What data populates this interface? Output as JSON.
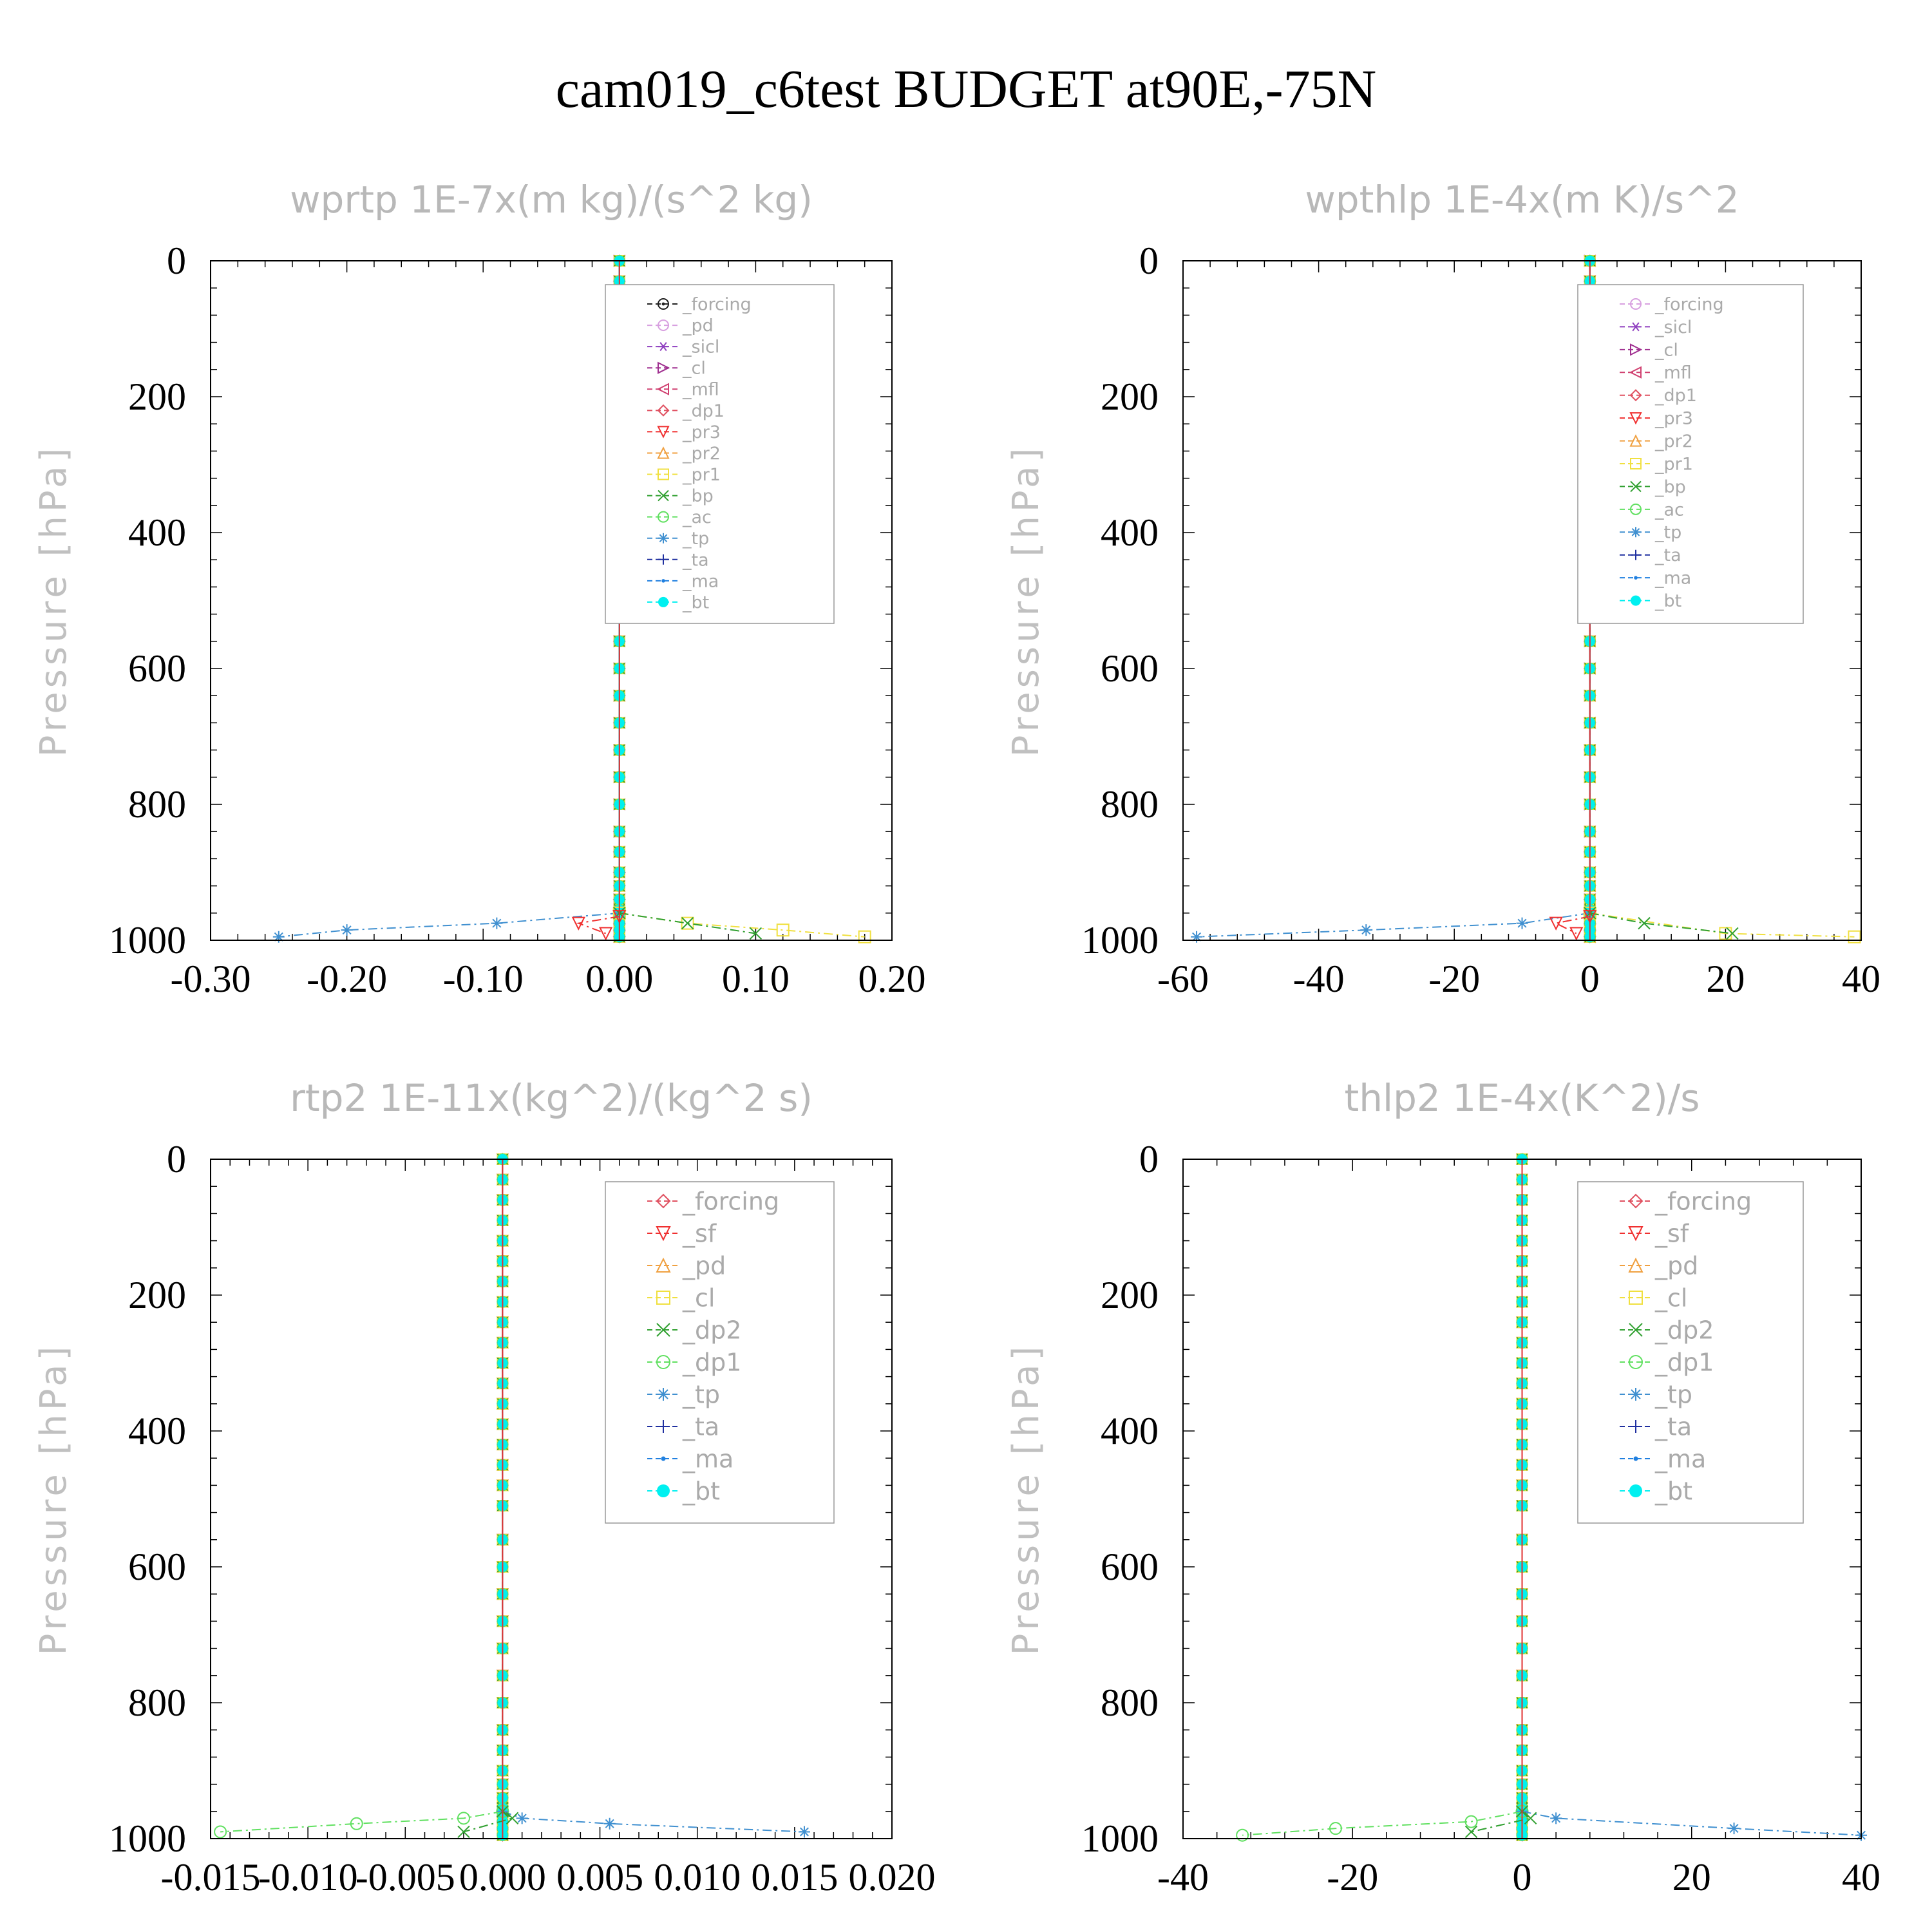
{
  "page": {
    "title": "cam019_c6test  BUDGET at90E,-75N"
  },
  "chart_data": [
    {
      "type": "line",
      "title": "wprtp   1E-7x(m kg)/(s^2 kg)",
      "xlabel": "",
      "ylabel": "Pressure [hPa]",
      "xlim": [
        -0.3,
        0.2
      ],
      "ylim": [
        1000,
        0
      ],
      "xticks": [
        "-0.30",
        "-0.20",
        "-0.10",
        "0.00",
        "0.10",
        "0.20"
      ],
      "yticks": [
        "0",
        "200",
        "400",
        "600",
        "800",
        "1000"
      ],
      "legend_position": "top-right",
      "grid": false,
      "series": [
        {
          "name": "_forcing",
          "color": "#222222",
          "marker": "circle-dot"
        },
        {
          "name": "_pd",
          "color": "#d8a0e0",
          "marker": "circle"
        },
        {
          "name": "_sicl",
          "color": "#9040c0",
          "marker": "star"
        },
        {
          "name": "_cl",
          "color": "#a03090",
          "marker": "triangle-right"
        },
        {
          "name": "_mfl",
          "color": "#d04070",
          "marker": "triangle-left"
        },
        {
          "name": "_dp1",
          "color": "#e05060",
          "marker": "diamond"
        },
        {
          "name": "_pr3",
          "color": "#f03030",
          "marker": "triangle-down"
        },
        {
          "name": "_pr2",
          "color": "#f0a040",
          "marker": "triangle-up"
        },
        {
          "name": "_pr1",
          "color": "#f0e040",
          "marker": "square"
        },
        {
          "name": "_bp",
          "color": "#30a030",
          "marker": "x"
        },
        {
          "name": "_ac",
          "color": "#60e060",
          "marker": "circle"
        },
        {
          "name": "_tp",
          "color": "#4090d0",
          "marker": "asterisk"
        },
        {
          "name": "_ta",
          "color": "#2030a0",
          "marker": "plus"
        },
        {
          "name": "_ma",
          "color": "#2080e0",
          "marker": "dot"
        },
        {
          "name": "_bt",
          "color": "#00f0f0",
          "marker": "filled-circle"
        }
      ],
      "near_surface_excursions": [
        {
          "series": "_tp",
          "points": [
            [
              0,
              960
            ],
            [
              -0.09,
              975
            ],
            [
              -0.2,
              985
            ],
            [
              -0.25,
              995
            ]
          ]
        },
        {
          "series": "_pr1",
          "points": [
            [
              0,
              960
            ],
            [
              0.05,
              975
            ],
            [
              0.12,
              985
            ],
            [
              0.18,
              995
            ]
          ]
        },
        {
          "series": "_bp",
          "points": [
            [
              0,
              960
            ],
            [
              0.05,
              975
            ],
            [
              0.1,
              990
            ]
          ]
        },
        {
          "series": "_pr3",
          "points": [
            [
              0,
              965
            ],
            [
              -0.03,
              975
            ],
            [
              -0.01,
              990
            ]
          ]
        }
      ]
    },
    {
      "type": "line",
      "title": "wpthlp   1E-4x(m K)/s^2",
      "xlabel": "",
      "ylabel": "Pressure [hPa]",
      "xlim": [
        -60,
        40
      ],
      "ylim": [
        1000,
        0
      ],
      "xticks": [
        "-60",
        "-40",
        "-20",
        "0",
        "20",
        "40"
      ],
      "yticks": [
        "0",
        "200",
        "400",
        "600",
        "800",
        "1000"
      ],
      "legend_position": "top-right",
      "grid": false,
      "series": [
        {
          "name": "_forcing",
          "color": "#d8a0e0",
          "marker": "circle"
        },
        {
          "name": "_sicl",
          "color": "#9040c0",
          "marker": "star"
        },
        {
          "name": "_cl",
          "color": "#a03090",
          "marker": "triangle-right"
        },
        {
          "name": "_mfl",
          "color": "#d04070",
          "marker": "triangle-left"
        },
        {
          "name": "_dp1",
          "color": "#e05060",
          "marker": "diamond"
        },
        {
          "name": "_pr3",
          "color": "#f03030",
          "marker": "triangle-down"
        },
        {
          "name": "_pr2",
          "color": "#f0a040",
          "marker": "triangle-up"
        },
        {
          "name": "_pr1",
          "color": "#f0e040",
          "marker": "square"
        },
        {
          "name": "_bp",
          "color": "#30a030",
          "marker": "x"
        },
        {
          "name": "_ac",
          "color": "#60e060",
          "marker": "circle"
        },
        {
          "name": "_tp",
          "color": "#4090d0",
          "marker": "asterisk"
        },
        {
          "name": "_ta",
          "color": "#2030a0",
          "marker": "plus"
        },
        {
          "name": "_ma",
          "color": "#2080e0",
          "marker": "dot"
        },
        {
          "name": "_bt",
          "color": "#00f0f0",
          "marker": "filled-circle"
        }
      ],
      "near_surface_excursions": [
        {
          "series": "_tp",
          "points": [
            [
              0,
              960
            ],
            [
              -10,
              975
            ],
            [
              -33,
              985
            ],
            [
              -58,
              995
            ]
          ]
        },
        {
          "series": "_pr1",
          "points": [
            [
              0,
              960
            ],
            [
              20,
              990
            ],
            [
              39,
              995
            ]
          ]
        },
        {
          "series": "_bp",
          "points": [
            [
              0,
              960
            ],
            [
              8,
              975
            ],
            [
              21,
              990
            ]
          ]
        },
        {
          "series": "_pr3",
          "points": [
            [
              0,
              965
            ],
            [
              -5,
              975
            ],
            [
              -2,
              990
            ]
          ]
        }
      ]
    },
    {
      "type": "line",
      "title": "rtp2   1E-11x(kg^2)/(kg^2 s)",
      "xlabel": "",
      "ylabel": "Pressure [hPa]",
      "xlim": [
        -0.015,
        0.02
      ],
      "ylim": [
        1000,
        0
      ],
      "xticks": [
        "-0.015",
        "-0.010",
        "-0.005",
        "0.000",
        "0.005",
        "0.010",
        "0.015",
        "0.020"
      ],
      "yticks": [
        "0",
        "200",
        "400",
        "600",
        "800",
        "1000"
      ],
      "legend_position": "top-right",
      "grid": false,
      "series": [
        {
          "name": "_forcing",
          "color": "#e05060",
          "marker": "diamond"
        },
        {
          "name": "_sf",
          "color": "#f03030",
          "marker": "triangle-down"
        },
        {
          "name": "_pd",
          "color": "#f0a040",
          "marker": "triangle-up"
        },
        {
          "name": "_cl",
          "color": "#f0e040",
          "marker": "square"
        },
        {
          "name": "_dp2",
          "color": "#30a030",
          "marker": "x"
        },
        {
          "name": "_dp1",
          "color": "#60e060",
          "marker": "circle"
        },
        {
          "name": "_tp",
          "color": "#4090d0",
          "marker": "asterisk"
        },
        {
          "name": "_ta",
          "color": "#2030a0",
          "marker": "plus"
        },
        {
          "name": "_ma",
          "color": "#2080e0",
          "marker": "dot"
        },
        {
          "name": "_bt",
          "color": "#00f0f0",
          "marker": "filled-circle"
        }
      ],
      "near_surface_excursions": [
        {
          "series": "_dp1",
          "points": [
            [
              0,
              960
            ],
            [
              -0.002,
              970
            ],
            [
              -0.0075,
              978
            ],
            [
              -0.0145,
              990
            ]
          ]
        },
        {
          "series": "_tp",
          "points": [
            [
              0,
              960
            ],
            [
              0.001,
              970
            ],
            [
              0.0055,
              978
            ],
            [
              0.0155,
              990
            ]
          ]
        },
        {
          "series": "_dp2",
          "points": [
            [
              0,
              960
            ],
            [
              0.0005,
              970
            ],
            [
              -0.002,
              990
            ]
          ]
        }
      ]
    },
    {
      "type": "line",
      "title": "thlp2   1E-4x(K^2)/s",
      "xlabel": "",
      "ylabel": "Pressure [hPa]",
      "xlim": [
        -40,
        40
      ],
      "ylim": [
        1000,
        0
      ],
      "xticks": [
        "-40",
        "-20",
        "0",
        "20",
        "40"
      ],
      "yticks": [
        "0",
        "200",
        "400",
        "600",
        "800",
        "1000"
      ],
      "legend_position": "top-right",
      "grid": false,
      "series": [
        {
          "name": "_forcing",
          "color": "#e05060",
          "marker": "diamond"
        },
        {
          "name": "_sf",
          "color": "#f03030",
          "marker": "triangle-down"
        },
        {
          "name": "_pd",
          "color": "#f0a040",
          "marker": "triangle-up"
        },
        {
          "name": "_cl",
          "color": "#f0e040",
          "marker": "square"
        },
        {
          "name": "_dp2",
          "color": "#30a030",
          "marker": "x"
        },
        {
          "name": "_dp1",
          "color": "#60e060",
          "marker": "circle"
        },
        {
          "name": "_tp",
          "color": "#4090d0",
          "marker": "asterisk"
        },
        {
          "name": "_ta",
          "color": "#2030a0",
          "marker": "plus"
        },
        {
          "name": "_ma",
          "color": "#2080e0",
          "marker": "dot"
        },
        {
          "name": "_bt",
          "color": "#00f0f0",
          "marker": "filled-circle"
        }
      ],
      "near_surface_excursions": [
        {
          "series": "_dp1",
          "points": [
            [
              0,
              960
            ],
            [
              -6,
              975
            ],
            [
              -22,
              985
            ],
            [
              -33,
              995
            ]
          ]
        },
        {
          "series": "_tp",
          "points": [
            [
              0,
              960
            ],
            [
              4,
              970
            ],
            [
              25,
              985
            ],
            [
              40,
              995
            ]
          ]
        },
        {
          "series": "_dp2",
          "points": [
            [
              0,
              960
            ],
            [
              1,
              970
            ],
            [
              -6,
              990
            ]
          ]
        }
      ]
    }
  ]
}
